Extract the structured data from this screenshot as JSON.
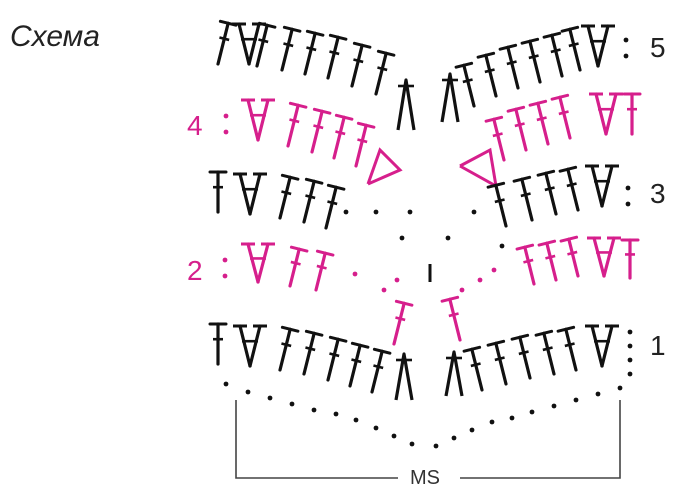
{
  "title": "Схема",
  "center_label": "MS",
  "colors": {
    "odd_rows": "#111111",
    "even_rows": "#d61f8c",
    "bracket": "#444444"
  },
  "symbols": {
    "dc": "double-crochet-icon",
    "dc2tog_fan": "two-dc-same-stitch-icon",
    "cluster": "dc-cluster-icon",
    "chain": "chain-dot-icon"
  },
  "rows": [
    {
      "number": "1",
      "label_side": "right",
      "color_key": "odd_rows"
    },
    {
      "number": "2",
      "label_side": "left",
      "color_key": "even_rows"
    },
    {
      "number": "3",
      "label_side": "right",
      "color_key": "odd_rows"
    },
    {
      "number": "4",
      "label_side": "left",
      "color_key": "even_rows"
    },
    {
      "number": "5",
      "label_side": "right",
      "color_key": "odd_rows"
    }
  ]
}
